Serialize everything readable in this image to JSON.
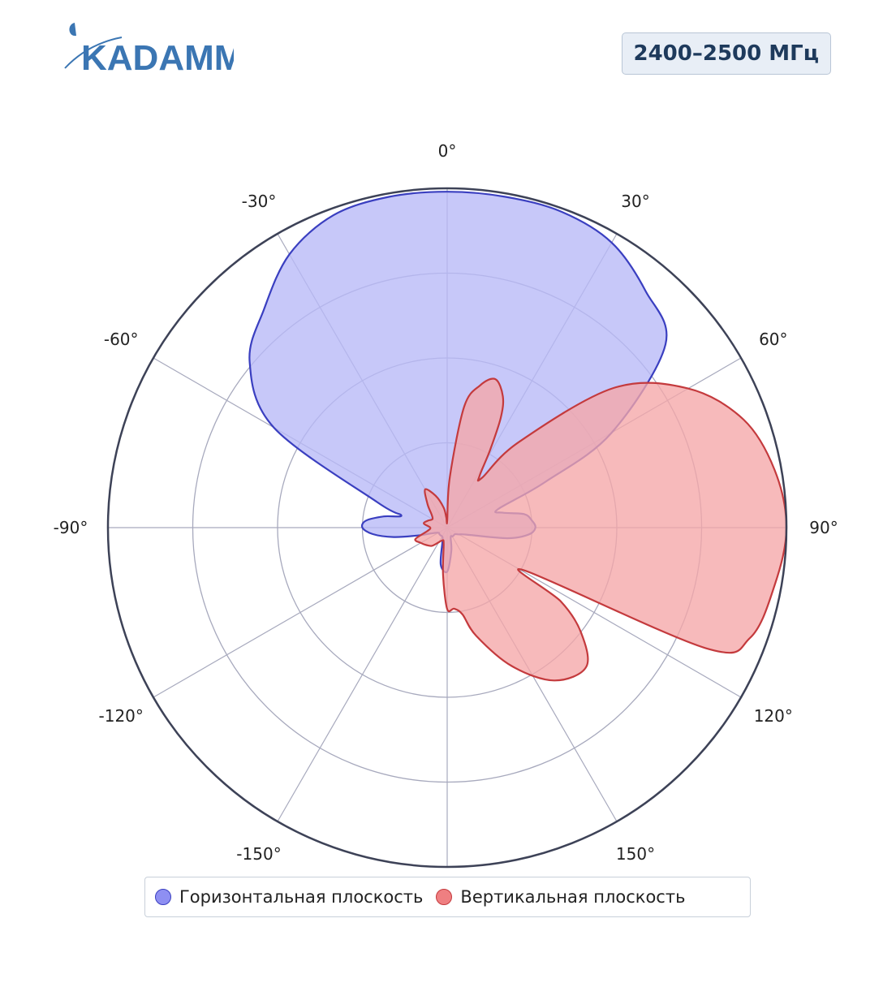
{
  "logo_text": "KADAMM",
  "frequency_label": "2400–2500 МГц",
  "colors": {
    "horizontal_fill": "#b7b8f7",
    "horizontal_stroke": "#3a3fc0",
    "vertical_fill": "#f5a6a8",
    "vertical_stroke": "#c43a3d",
    "grid": "#a7a9bd",
    "outer_ring": "#3d4257",
    "logo": "#3b76b3"
  },
  "legend": {
    "horizontal": "Горизонтальная плоскость",
    "vertical": "Вертикальная плоскость"
  },
  "chart_data": {
    "type": "polar_area",
    "angular_axis": {
      "direction": "clockwise",
      "zero_at": "top",
      "tick_labels": [
        "0°",
        "30°",
        "60°",
        "90°",
        "120°",
        "150°",
        "-150°",
        "-120°",
        "-90°",
        "-60°",
        "-30°"
      ],
      "tick_angles": [
        0,
        30,
        60,
        90,
        120,
        150,
        -150,
        -120,
        -90,
        -60,
        -30
      ]
    },
    "radial_axis": {
      "range": [
        0,
        1
      ],
      "rings": [
        0.25,
        0.5,
        0.75,
        1.0
      ],
      "tick_labels_shown": false
    },
    "series": [
      {
        "name": "Горизонтальная плоскость",
        "angles": [
          0,
          10,
          20,
          30,
          40,
          50,
          60,
          65,
          70,
          75,
          80,
          85,
          90,
          95,
          100,
          110,
          120,
          130,
          140,
          150,
          160,
          170,
          180,
          190,
          200,
          210,
          220,
          230,
          240,
          250,
          255,
          260,
          265,
          270,
          275,
          280,
          285,
          290,
          300,
          310,
          320,
          330,
          340,
          350
        ],
        "r": [
          0.99,
          0.99,
          0.99,
          0.97,
          0.91,
          0.84,
          0.56,
          0.32,
          0.16,
          0.17,
          0.23,
          0.25,
          0.26,
          0.24,
          0.18,
          0.06,
          0.04,
          0.03,
          0.03,
          0.03,
          0.03,
          0.07,
          0.13,
          0.11,
          0.04,
          0.03,
          0.03,
          0.03,
          0.03,
          0.05,
          0.09,
          0.16,
          0.22,
          0.25,
          0.24,
          0.19,
          0.14,
          0.22,
          0.59,
          0.76,
          0.84,
          0.93,
          0.98,
          0.99
        ]
      },
      {
        "name": "Вертикальная плоскость",
        "angles": [
          0,
          3,
          8,
          13,
          18,
          23,
          26,
          29,
          32,
          35,
          40,
          50,
          60,
          70,
          80,
          90,
          100,
          110,
          115,
          119,
          123,
          128,
          135,
          145,
          155,
          165,
          170,
          175,
          180,
          185,
          192,
          200,
          210,
          220,
          230,
          240,
          250,
          260,
          270,
          280,
          290,
          300,
          310,
          320,
          330,
          340,
          350,
          355
        ],
        "r": [
          0.02,
          0.15,
          0.36,
          0.43,
          0.46,
          0.42,
          0.36,
          0.26,
          0.18,
          0.18,
          0.33,
          0.64,
          0.82,
          0.93,
          0.98,
          1.0,
          0.98,
          0.95,
          0.84,
          0.26,
          0.4,
          0.5,
          0.58,
          0.55,
          0.45,
          0.33,
          0.26,
          0.24,
          0.24,
          0.14,
          0.05,
          0.04,
          0.05,
          0.07,
          0.08,
          0.09,
          0.1,
          0.06,
          0.05,
          0.07,
          0.06,
          0.05,
          0.06,
          0.09,
          0.13,
          0.1,
          0.06,
          0.03
        ]
      }
    ]
  }
}
